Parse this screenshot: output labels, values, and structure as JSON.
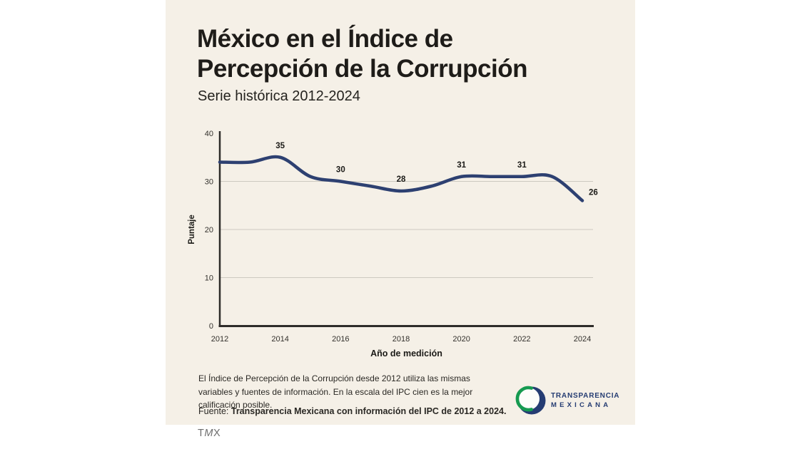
{
  "card": {
    "background": "#f5f0e7"
  },
  "header": {
    "title_line1": "México en el Índice de",
    "title_line2": "Percepción de la Corrupción",
    "subtitle": "Serie histórica 2012-2024"
  },
  "chart_data": {
    "type": "line",
    "title": "México en el Índice de Percepción de la Corrupción",
    "subtitle": "Serie histórica 2012-2024",
    "x": [
      2012,
      2013,
      2014,
      2015,
      2016,
      2017,
      2018,
      2019,
      2020,
      2021,
      2022,
      2023,
      2024
    ],
    "values": [
      34,
      34,
      35,
      31,
      30,
      29,
      28,
      29,
      31,
      31,
      31,
      31,
      26
    ],
    "xlabel": "Año de medición",
    "ylabel": "Puntaje",
    "ylim": [
      0,
      40
    ],
    "yticks": [
      0,
      10,
      20,
      30,
      40
    ],
    "xticks": [
      2012,
      2014,
      2016,
      2018,
      2020,
      2022,
      2024
    ],
    "grid": "horizontal gridlines at 10, 20, 30",
    "legend": "none",
    "line_color": "#2d4071",
    "axis_color": "#2e2c29",
    "grid_color": "#cdc9c0",
    "text_color": "#33312d",
    "label_color": "#1b1a17",
    "labeled_points": [
      {
        "x": 2014,
        "value": 35
      },
      {
        "x": 2016,
        "value": 30
      },
      {
        "x": 2018,
        "value": 28
      },
      {
        "x": 2020,
        "value": 31
      },
      {
        "x": 2022,
        "value": 31
      },
      {
        "x": 2024,
        "value": 26
      }
    ]
  },
  "footer": {
    "note_lines": [
      "El Índice de Percepción de la Corrupción desde 2012 utiliza las mismas",
      "variables y fuentes de información. En la escala del IPC cien es la mejor",
      "calificación posible."
    ],
    "fuente_label": "Fuente:",
    "fuente_text": "Transparencia Mexicana con información del IPC de 2012 a 2024."
  },
  "logo": {
    "line1": "TRANSPARENCIA",
    "line2": "MEXICANA",
    "navy": "#253c72",
    "green": "#169a50",
    "inner": "#fdfdfa"
  },
  "watermark": {
    "t": "T",
    "m": "M",
    "x": "X"
  }
}
